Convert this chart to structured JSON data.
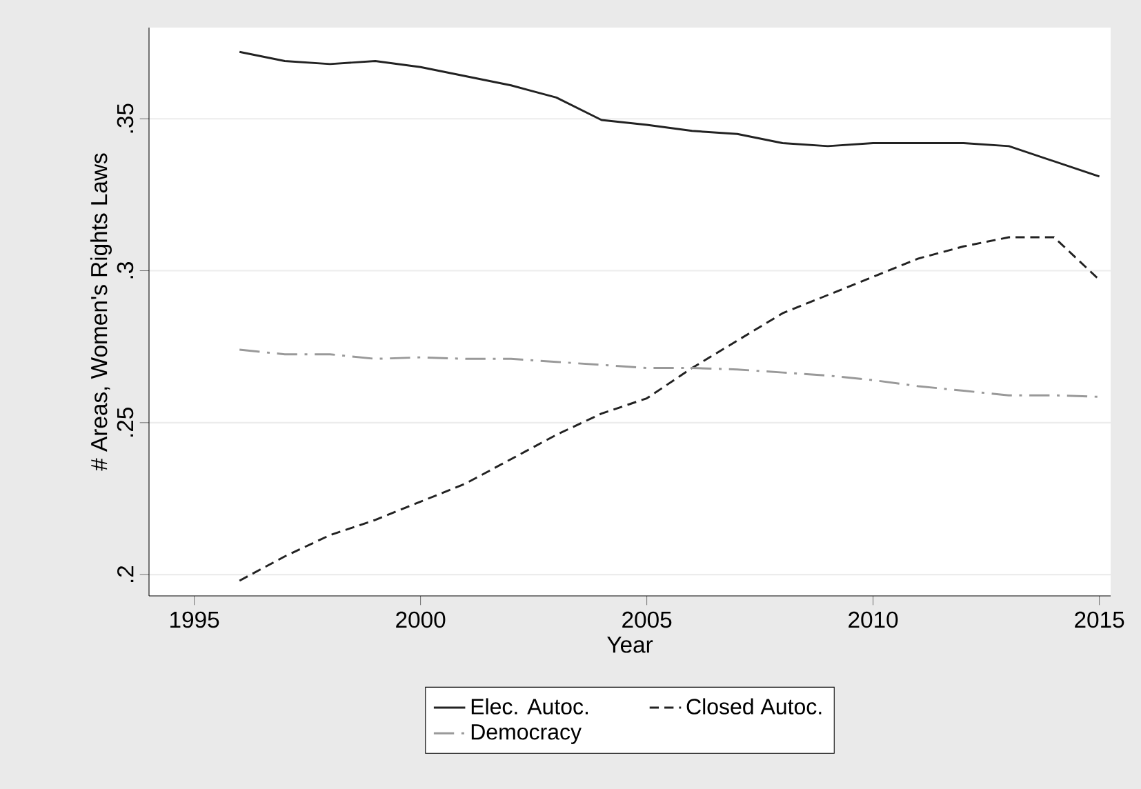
{
  "chart_data": {
    "type": "line",
    "xlabel": "Year",
    "ylabel": "# Areas, Women's Rights Laws",
    "x": [
      1996,
      1997,
      1998,
      1999,
      2000,
      2001,
      2002,
      2003,
      2004,
      2005,
      2006,
      2007,
      2008,
      2009,
      2010,
      2011,
      2012,
      2013,
      2014,
      2015
    ],
    "series": [
      {
        "name": "Elec. Autoc.",
        "color": "#222222",
        "line_style": "solid",
        "values": [
          0.372,
          0.369,
          0.368,
          0.369,
          0.367,
          0.364,
          0.361,
          0.357,
          0.3496,
          0.348,
          0.346,
          0.345,
          0.342,
          0.341,
          0.342,
          0.342,
          0.342,
          0.341,
          0.336,
          0.331
        ]
      },
      {
        "name": "Closed Autoc.",
        "color": "#222222",
        "line_style": "dashed",
        "values": [
          0.198,
          0.206,
          0.213,
          0.218,
          0.224,
          0.23,
          0.238,
          0.246,
          0.253,
          0.258,
          0.268,
          0.277,
          0.286,
          0.292,
          0.298,
          0.304,
          0.308,
          0.311,
          0.311,
          0.297
        ]
      },
      {
        "name": "Democracy",
        "color": "#999999",
        "line_style": "dashdot",
        "values": [
          0.274,
          0.2725,
          0.2725,
          0.271,
          0.2715,
          0.271,
          0.271,
          0.27,
          0.269,
          0.268,
          0.268,
          0.2675,
          0.2665,
          0.2655,
          0.264,
          0.262,
          0.2605,
          0.259,
          0.259,
          0.2585
        ]
      }
    ],
    "xlim": [
      1994.0,
      2015.25
    ],
    "ylim": [
      0.193,
      0.38
    ],
    "xticks": [
      1995,
      2000,
      2005,
      2010,
      2015
    ],
    "yticks": [
      {
        "value": 0.2,
        "label": ".2"
      },
      {
        "value": 0.25,
        "label": ".25"
      },
      {
        "value": 0.3,
        "label": ".3"
      },
      {
        "value": 0.35,
        "label": ".35"
      }
    ],
    "grid": "y",
    "legend": "bottom"
  }
}
